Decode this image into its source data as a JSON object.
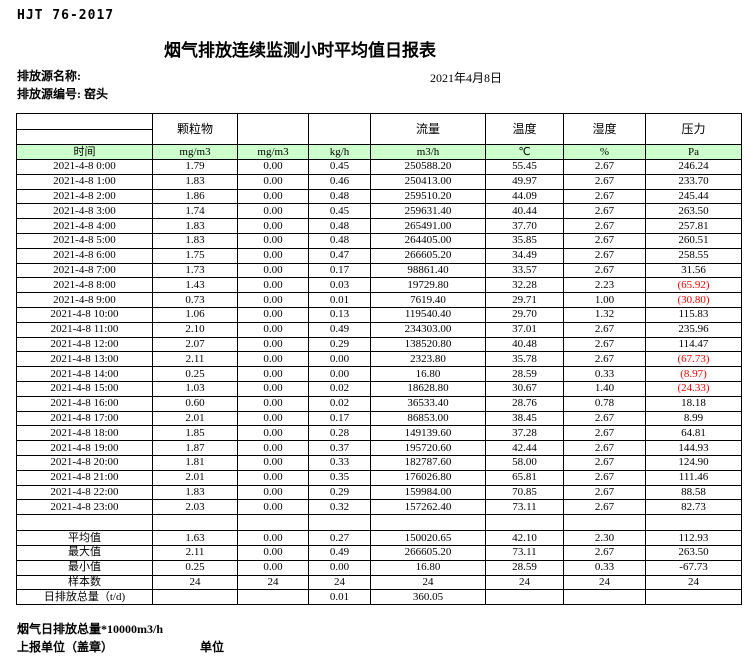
{
  "header": {
    "standard": "HJT  76-2017",
    "title": "烟气排放连续监测小时平均值日报表",
    "source_name_label": "排放源名称:",
    "date": "2021年4月8日",
    "source_id_label": "排放源编号:",
    "source_id_value": "窑头"
  },
  "colors": {
    "header_green": "#CCFFCC",
    "negative_red": "#FF0000"
  },
  "table": {
    "group_headers": [
      "",
      "颗粒物",
      "",
      "",
      "流量",
      "温度",
      "湿度",
      "压力"
    ],
    "unit_row": [
      "时间",
      "mg/m3",
      "mg/m3",
      "kg/h",
      "m3/h",
      "℃",
      "%",
      "Pa"
    ],
    "rows": [
      {
        "time": "2021-4-8 0:00",
        "values": [
          "1.79",
          "0.00",
          "0.45",
          "250588.20",
          "55.45",
          "2.67",
          "246.24"
        ]
      },
      {
        "time": "2021-4-8 1:00",
        "values": [
          "1.83",
          "0.00",
          "0.46",
          "250413.00",
          "49.97",
          "2.67",
          "233.70"
        ]
      },
      {
        "time": "2021-4-8 2:00",
        "values": [
          "1.86",
          "0.00",
          "0.48",
          "259510.20",
          "44.09",
          "2.67",
          "245.44"
        ]
      },
      {
        "time": "2021-4-8 3:00",
        "values": [
          "1.74",
          "0.00",
          "0.45",
          "259631.40",
          "40.44",
          "2.67",
          "263.50"
        ]
      },
      {
        "time": "2021-4-8 4:00",
        "values": [
          "1.83",
          "0.00",
          "0.48",
          "265491.00",
          "37.70",
          "2.67",
          "257.81"
        ]
      },
      {
        "time": "2021-4-8 5:00",
        "values": [
          "1.83",
          "0.00",
          "0.48",
          "264405.00",
          "35.85",
          "2.67",
          "260.51"
        ]
      },
      {
        "time": "2021-4-8 6:00",
        "values": [
          "1.75",
          "0.00",
          "0.47",
          "266605.20",
          "34.49",
          "2.67",
          "258.55"
        ]
      },
      {
        "time": "2021-4-8 7:00",
        "values": [
          "1.73",
          "0.00",
          "0.17",
          "98861.40",
          "33.57",
          "2.67",
          "31.56"
        ]
      },
      {
        "time": "2021-4-8 8:00",
        "values": [
          "1.43",
          "0.00",
          "0.03",
          "19729.80",
          "32.28",
          "2.23",
          "(65.92)"
        ]
      },
      {
        "time": "2021-4-8 9:00",
        "values": [
          "0.73",
          "0.00",
          "0.01",
          "7619.40",
          "29.71",
          "1.00",
          "(30.80)"
        ]
      },
      {
        "time": "2021-4-8 10:00",
        "values": [
          "1.06",
          "0.00",
          "0.13",
          "119540.40",
          "29.70",
          "1.32",
          "115.83"
        ]
      },
      {
        "time": "2021-4-8 11:00",
        "values": [
          "2.10",
          "0.00",
          "0.49",
          "234303.00",
          "37.01",
          "2.67",
          "235.96"
        ]
      },
      {
        "time": "2021-4-8 12:00",
        "values": [
          "2.07",
          "0.00",
          "0.29",
          "138520.80",
          "40.48",
          "2.67",
          "114.47"
        ]
      },
      {
        "time": "2021-4-8 13:00",
        "values": [
          "2.11",
          "0.00",
          "0.00",
          "2323.80",
          "35.78",
          "2.67",
          "(67.73)"
        ]
      },
      {
        "time": "2021-4-8 14:00",
        "values": [
          "0.25",
          "0.00",
          "0.00",
          "16.80",
          "28.59",
          "0.33",
          "(8.97)"
        ]
      },
      {
        "time": "2021-4-8 15:00",
        "values": [
          "1.03",
          "0.00",
          "0.02",
          "18628.80",
          "30.67",
          "1.40",
          "(24.33)"
        ]
      },
      {
        "time": "2021-4-8 16:00",
        "values": [
          "0.60",
          "0.00",
          "0.02",
          "36533.40",
          "28.76",
          "0.78",
          "18.18"
        ]
      },
      {
        "time": "2021-4-8 17:00",
        "values": [
          "2.01",
          "0.00",
          "0.17",
          "86853.00",
          "38.45",
          "2.67",
          "8.99"
        ]
      },
      {
        "time": "2021-4-8 18:00",
        "values": [
          "1.85",
          "0.00",
          "0.28",
          "149139.60",
          "37.28",
          "2.67",
          "64.81"
        ]
      },
      {
        "time": "2021-4-8 19:00",
        "values": [
          "1.87",
          "0.00",
          "0.37",
          "195720.60",
          "42.44",
          "2.67",
          "144.93"
        ]
      },
      {
        "time": "2021-4-8 20:00",
        "values": [
          "1.81",
          "0.00",
          "0.33",
          "182787.60",
          "58.00",
          "2.67",
          "124.90"
        ]
      },
      {
        "time": "2021-4-8 21:00",
        "values": [
          "2.01",
          "0.00",
          "0.35",
          "176026.80",
          "65.81",
          "2.67",
          "111.46"
        ]
      },
      {
        "time": "2021-4-8 22:00",
        "values": [
          "1.83",
          "0.00",
          "0.29",
          "159984.00",
          "70.85",
          "2.67",
          "88.58"
        ]
      },
      {
        "time": "2021-4-8 23:00",
        "values": [
          "2.03",
          "0.00",
          "0.32",
          "157262.40",
          "73.11",
          "2.67",
          "82.73"
        ]
      }
    ],
    "summary": [
      {
        "label": "平均值",
        "align": "center",
        "values": [
          "1.63",
          "0.00",
          "0.27",
          "150020.65",
          "42.10",
          "2.30",
          "112.93"
        ]
      },
      {
        "label": "最大值",
        "align": "center",
        "values": [
          "2.11",
          "0.00",
          "0.49",
          "266605.20",
          "73.11",
          "2.67",
          "263.50"
        ]
      },
      {
        "label": "最小值",
        "align": "center",
        "values": [
          "0.25",
          "0.00",
          "0.00",
          "16.80",
          "28.59",
          "0.33",
          "-67.73"
        ]
      },
      {
        "label": "样本数",
        "align": "center",
        "values": [
          "24",
          "24",
          "24",
          "24",
          "24",
          "24",
          "24"
        ]
      },
      {
        "label": "日排放总量（t/d)",
        "align": "left",
        "values": [
          "",
          "",
          "0.01",
          "360.05",
          "",
          "",
          ""
        ]
      }
    ]
  },
  "footer": {
    "note": "烟气日排放总量*10000m3/h",
    "report_unit_label": "上报单位（盖章）",
    "unit_label": "单位"
  }
}
